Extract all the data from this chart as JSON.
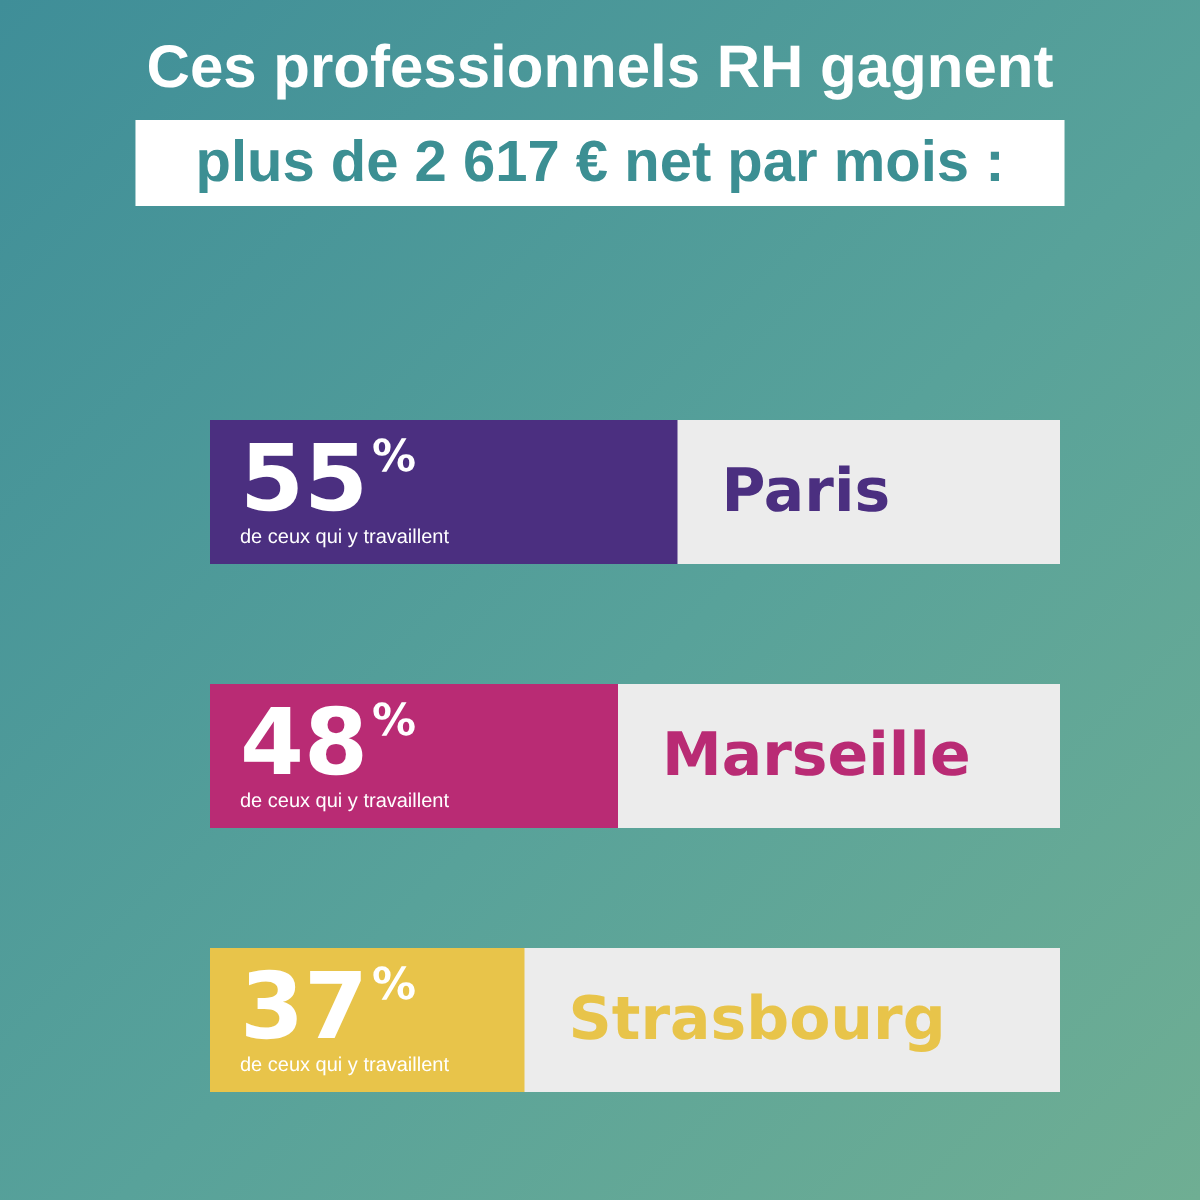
{
  "chart_data": {
    "type": "bar",
    "orientation": "horizontal",
    "title": "Ces professionnels RH gagnent",
    "subtitle": "plus de 2 617 € net par mois :",
    "categories": [
      "Paris",
      "Marseille",
      "Strasbourg"
    ],
    "values": [
      55,
      48,
      37
    ],
    "colors": [
      "#4b2f80",
      "#b92b74",
      "#e8c44a"
    ],
    "value_labels": [
      "55%\nde ceux qui y travaillent",
      "48%\nde ceux qui y travaillent",
      "37%\nde ceux qui y travaillent"
    ],
    "xlim": [
      0,
      100
    ],
    "tick_labels": "y"
  }
}
